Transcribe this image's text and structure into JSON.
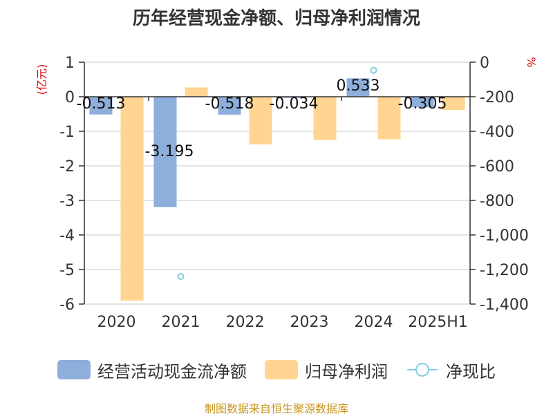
{
  "title": "历年经营现金净额、归母净利润情况",
  "source": "制图数据来自恒生聚源数据库",
  "chart_data": {
    "type": "bar",
    "categories": [
      "2020",
      "2021",
      "2022",
      "2023",
      "2024",
      "2025H1"
    ],
    "left_axis": {
      "unit": "(亿元)",
      "ticks": [
        "1",
        "0",
        "-1",
        "-2",
        "-3",
        "-4",
        "-5",
        "-6"
      ],
      "ylim": [
        -6,
        1
      ]
    },
    "right_axis": {
      "unit": "%",
      "ticks": [
        "0",
        "-200",
        "-400",
        "-600",
        "-800",
        "-1,000",
        "-1,200",
        "-1,400"
      ],
      "ylim": [
        -1400,
        0
      ]
    },
    "series": [
      {
        "name": "经营活动现金流净额",
        "type": "bar",
        "axis": "left",
        "color": "#8eaedb",
        "values": [
          -0.513,
          -3.195,
          -0.518,
          -0.034,
          0.533,
          -0.305
        ],
        "labels": [
          "-0.513",
          "-3.195",
          "-0.518",
          "-0.034",
          "0.533",
          "-0.305"
        ]
      },
      {
        "name": "归母净利润",
        "type": "bar",
        "axis": "left",
        "color": "#ffd591",
        "values": [
          -5.9,
          0.27,
          -1.38,
          -1.25,
          -1.23,
          -0.38
        ]
      },
      {
        "name": "净现比",
        "type": "scatter",
        "axis": "right",
        "color": "#7fcfdc",
        "values": [
          null,
          -1240,
          null,
          null,
          -47,
          null
        ]
      }
    ]
  }
}
